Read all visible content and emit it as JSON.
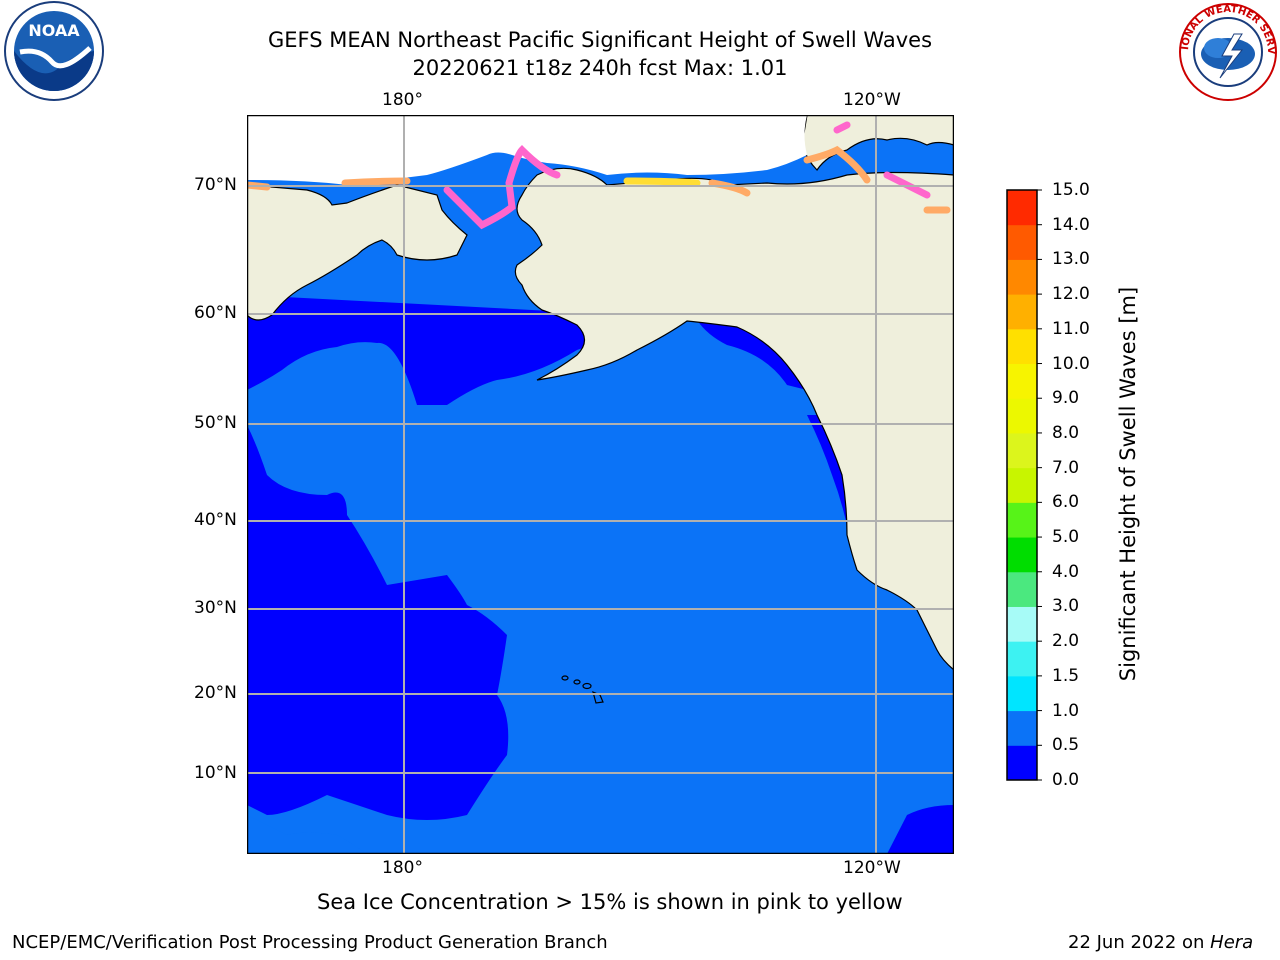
{
  "title": {
    "line1": "GEFS MEAN Northeast Pacific Significant Height of Swell Waves",
    "line2": "20220621 t18z 240h fcst   Max: 1.01"
  },
  "axes": {
    "top_lon": [
      "180°",
      "120°W"
    ],
    "bottom_lon": [
      "180°",
      "120°W"
    ],
    "lat": [
      "70°N",
      "60°N",
      "50°N",
      "40°N",
      "30°N",
      "20°N",
      "10°N"
    ]
  },
  "colorbar": {
    "label": "Significant Height of Swell Waves [m]",
    "ticks": [
      "0.0",
      "0.5",
      "1.0",
      "1.5",
      "2.0",
      "3.0",
      "4.0",
      "5.0",
      "6.0",
      "7.0",
      "8.0",
      "9.0",
      "10.0",
      "11.0",
      "12.0",
      "13.0",
      "14.0",
      "15.0"
    ],
    "colors": [
      "#0000ff",
      "#0b73f7",
      "#00e5ff",
      "#3df2f2",
      "#a7fbf7",
      "#4be87f",
      "#00dd00",
      "#57f318",
      "#c8f500",
      "#dcf51c",
      "#ecf800",
      "#f7f400",
      "#ffe000",
      "#ffb000",
      "#ff8800",
      "#ff5a00",
      "#ff2a00"
    ]
  },
  "map": {
    "land_color": "#efefdc",
    "ocean_dark": "#0000ff",
    "ocean_light": "#0b73f7",
    "ice_colors": [
      "#ff66cc",
      "#ffaa66",
      "#ffdd33"
    ]
  },
  "footer": {
    "note": "Sea Ice Concentration > 15% is shown in pink to yellow",
    "left": "NCEP/EMC/Verification Post Processing Product Generation Branch",
    "right_prefix": "22 Jun 2022 on ",
    "right_machine": "Hera"
  },
  "logos": {
    "noaa_text": "NOAA",
    "nws_text": "NATIONAL WEATHER SERVICE"
  }
}
